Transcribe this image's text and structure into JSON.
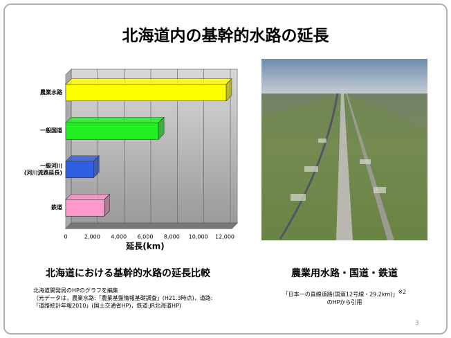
{
  "title": "北海道内の基幹的水路の延長",
  "chart_data": {
    "type": "hbar3d",
    "categories": [
      "農業水路",
      "一般国道",
      "一級河川\n(河川流路延長)",
      "鉄道"
    ],
    "series": [
      {
        "values": [
          12100,
          7000,
          2100,
          2900
        ],
        "colors": [
          "#ffff00",
          "#22ee22",
          "#2f5fe0",
          "#ff99cc"
        ]
      }
    ],
    "xlim": [
      0,
      12000
    ],
    "xticks": [
      0,
      {
        "value": 2000,
        "label": "2,000"
      },
      {
        "value": 4000,
        "label": "4,000"
      },
      {
        "value": 6000,
        "label": "6,000"
      },
      {
        "value": 8000,
        "label": "8,000"
      },
      {
        "value": 10000,
        "label": "10,000"
      },
      {
        "value": 12000,
        "label": "12,000"
      }
    ],
    "xlabel": "延長(km)",
    "grid": true
  },
  "chart_caption": "北海道における基幹的水路の延長比較",
  "chart_notes": [
    "北海道開発局のHPのグラフを編集",
    "（元データは，農業水路:「農業基盤情報基礎調査」(H21.3時点)，道路:",
    "「道路統計年報2010」(国土交通省HP)，鉄道:JR北海道HP)"
  ],
  "photo_caption": "農業用水路・国道・鉄道",
  "photo_source": {
    "line1": "「日本一の直線道路(国道12号線・29.2km)」",
    "note": "※2",
    "line2": "のHPから引用"
  },
  "page_number": "3"
}
